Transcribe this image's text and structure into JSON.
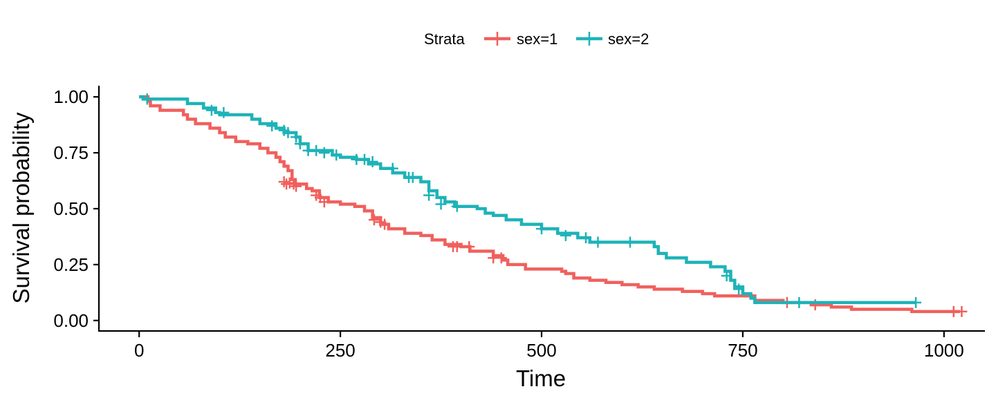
{
  "chart_data": {
    "type": "line",
    "subtype": "step (Kaplan-Meier survival curve)",
    "title": "",
    "xlabel": "Time",
    "ylabel": "Survival probability",
    "xlim": [
      -50,
      1050
    ],
    "ylim": [
      -0.05,
      1.05
    ],
    "x_ticks": [
      0,
      250,
      500,
      750,
      1000
    ],
    "x_tick_labels": [
      "0",
      "250",
      "500",
      "750",
      "1000"
    ],
    "y_ticks": [
      0,
      0.25,
      0.5,
      0.75,
      1.0
    ],
    "y_tick_labels": [
      "0.00",
      "0.25",
      "0.50",
      "0.75",
      "1.00"
    ],
    "grid": false,
    "legend": {
      "title": "Strata",
      "position": "top",
      "entries": [
        "sex=1",
        "sex=2"
      ]
    },
    "series": [
      {
        "name": "sex=1",
        "color": "#F0605D",
        "steps": [
          [
            0,
            1.0
          ],
          [
            11,
            0.98
          ],
          [
            14,
            0.96
          ],
          [
            26,
            0.94
          ],
          [
            55,
            0.92
          ],
          [
            60,
            0.9
          ],
          [
            70,
            0.88
          ],
          [
            88,
            0.86
          ],
          [
            100,
            0.84
          ],
          [
            107,
            0.82
          ],
          [
            120,
            0.8
          ],
          [
            135,
            0.79
          ],
          [
            150,
            0.77
          ],
          [
            160,
            0.75
          ],
          [
            170,
            0.73
          ],
          [
            175,
            0.71
          ],
          [
            180,
            0.69
          ],
          [
            185,
            0.67
          ],
          [
            190,
            0.63
          ],
          [
            194,
            0.61
          ],
          [
            208,
            0.59
          ],
          [
            215,
            0.58
          ],
          [
            224,
            0.55
          ],
          [
            235,
            0.53
          ],
          [
            250,
            0.52
          ],
          [
            268,
            0.51
          ],
          [
            280,
            0.49
          ],
          [
            290,
            0.46
          ],
          [
            300,
            0.43
          ],
          [
            310,
            0.41
          ],
          [
            330,
            0.39
          ],
          [
            350,
            0.38
          ],
          [
            364,
            0.36
          ],
          [
            380,
            0.34
          ],
          [
            400,
            0.33
          ],
          [
            411,
            0.31
          ],
          [
            440,
            0.29
          ],
          [
            452,
            0.27
          ],
          [
            458,
            0.25
          ],
          [
            480,
            0.23
          ],
          [
            525,
            0.22
          ],
          [
            530,
            0.21
          ],
          [
            540,
            0.19
          ],
          [
            560,
            0.18
          ],
          [
            580,
            0.17
          ],
          [
            600,
            0.16
          ],
          [
            620,
            0.15
          ],
          [
            640,
            0.14
          ],
          [
            675,
            0.13
          ],
          [
            700,
            0.12
          ],
          [
            715,
            0.11
          ],
          [
            765,
            0.09
          ],
          [
            800,
            0.08
          ],
          [
            835,
            0.07
          ],
          [
            860,
            0.06
          ],
          [
            885,
            0.05
          ],
          [
            960,
            0.04
          ],
          [
            1020,
            0.04
          ]
        ],
        "censored": [
          [
            10,
            0.99
          ],
          [
            180,
            0.62
          ],
          [
            183,
            0.61
          ],
          [
            187,
            0.615
          ],
          [
            192,
            0.61
          ],
          [
            195,
            0.6
          ],
          [
            220,
            0.56
          ],
          [
            225,
            0.55
          ],
          [
            230,
            0.53
          ],
          [
            292,
            0.45
          ],
          [
            300,
            0.44
          ],
          [
            305,
            0.43
          ],
          [
            390,
            0.33
          ],
          [
            395,
            0.33
          ],
          [
            410,
            0.33
          ],
          [
            440,
            0.28
          ],
          [
            450,
            0.28
          ],
          [
            805,
            0.08
          ],
          [
            840,
            0.07
          ],
          [
            1012,
            0.04
          ],
          [
            1022,
            0.04
          ]
        ]
      },
      {
        "name": "sex=2",
        "color": "#1DB3B8",
        "steps": [
          [
            0,
            1.0
          ],
          [
            5,
            0.99
          ],
          [
            60,
            0.97
          ],
          [
            80,
            0.95
          ],
          [
            95,
            0.93
          ],
          [
            100,
            0.92
          ],
          [
            140,
            0.9
          ],
          [
            150,
            0.88
          ],
          [
            170,
            0.86
          ],
          [
            180,
            0.84
          ],
          [
            195,
            0.82
          ],
          [
            200,
            0.79
          ],
          [
            210,
            0.76
          ],
          [
            240,
            0.74
          ],
          [
            250,
            0.73
          ],
          [
            270,
            0.72
          ],
          [
            285,
            0.7
          ],
          [
            300,
            0.68
          ],
          [
            315,
            0.66
          ],
          [
            330,
            0.64
          ],
          [
            350,
            0.62
          ],
          [
            360,
            0.58
          ],
          [
            370,
            0.55
          ],
          [
            380,
            0.53
          ],
          [
            392,
            0.51
          ],
          [
            420,
            0.5
          ],
          [
            430,
            0.48
          ],
          [
            440,
            0.47
          ],
          [
            456,
            0.45
          ],
          [
            475,
            0.43
          ],
          [
            500,
            0.41
          ],
          [
            520,
            0.39
          ],
          [
            545,
            0.37
          ],
          [
            560,
            0.35
          ],
          [
            640,
            0.33
          ],
          [
            645,
            0.3
          ],
          [
            655,
            0.28
          ],
          [
            680,
            0.26
          ],
          [
            710,
            0.24
          ],
          [
            728,
            0.22
          ],
          [
            735,
            0.18
          ],
          [
            740,
            0.15
          ],
          [
            750,
            0.12
          ],
          [
            760,
            0.1
          ],
          [
            765,
            0.08
          ],
          [
            965,
            0.08
          ]
        ],
        "censored": [
          [
            10,
            0.99
          ],
          [
            90,
            0.94
          ],
          [
            105,
            0.93
          ],
          [
            165,
            0.87
          ],
          [
            180,
            0.85
          ],
          [
            185,
            0.84
          ],
          [
            195,
            0.82
          ],
          [
            200,
            0.79
          ],
          [
            210,
            0.76
          ],
          [
            220,
            0.76
          ],
          [
            230,
            0.75
          ],
          [
            245,
            0.74
          ],
          [
            270,
            0.72
          ],
          [
            280,
            0.72
          ],
          [
            290,
            0.71
          ],
          [
            315,
            0.68
          ],
          [
            335,
            0.64
          ],
          [
            340,
            0.64
          ],
          [
            360,
            0.56
          ],
          [
            375,
            0.52
          ],
          [
            395,
            0.51
          ],
          [
            500,
            0.41
          ],
          [
            530,
            0.38
          ],
          [
            555,
            0.37
          ],
          [
            570,
            0.35
          ],
          [
            610,
            0.35
          ],
          [
            730,
            0.2
          ],
          [
            745,
            0.14
          ],
          [
            820,
            0.08
          ],
          [
            965,
            0.08
          ]
        ]
      }
    ]
  }
}
